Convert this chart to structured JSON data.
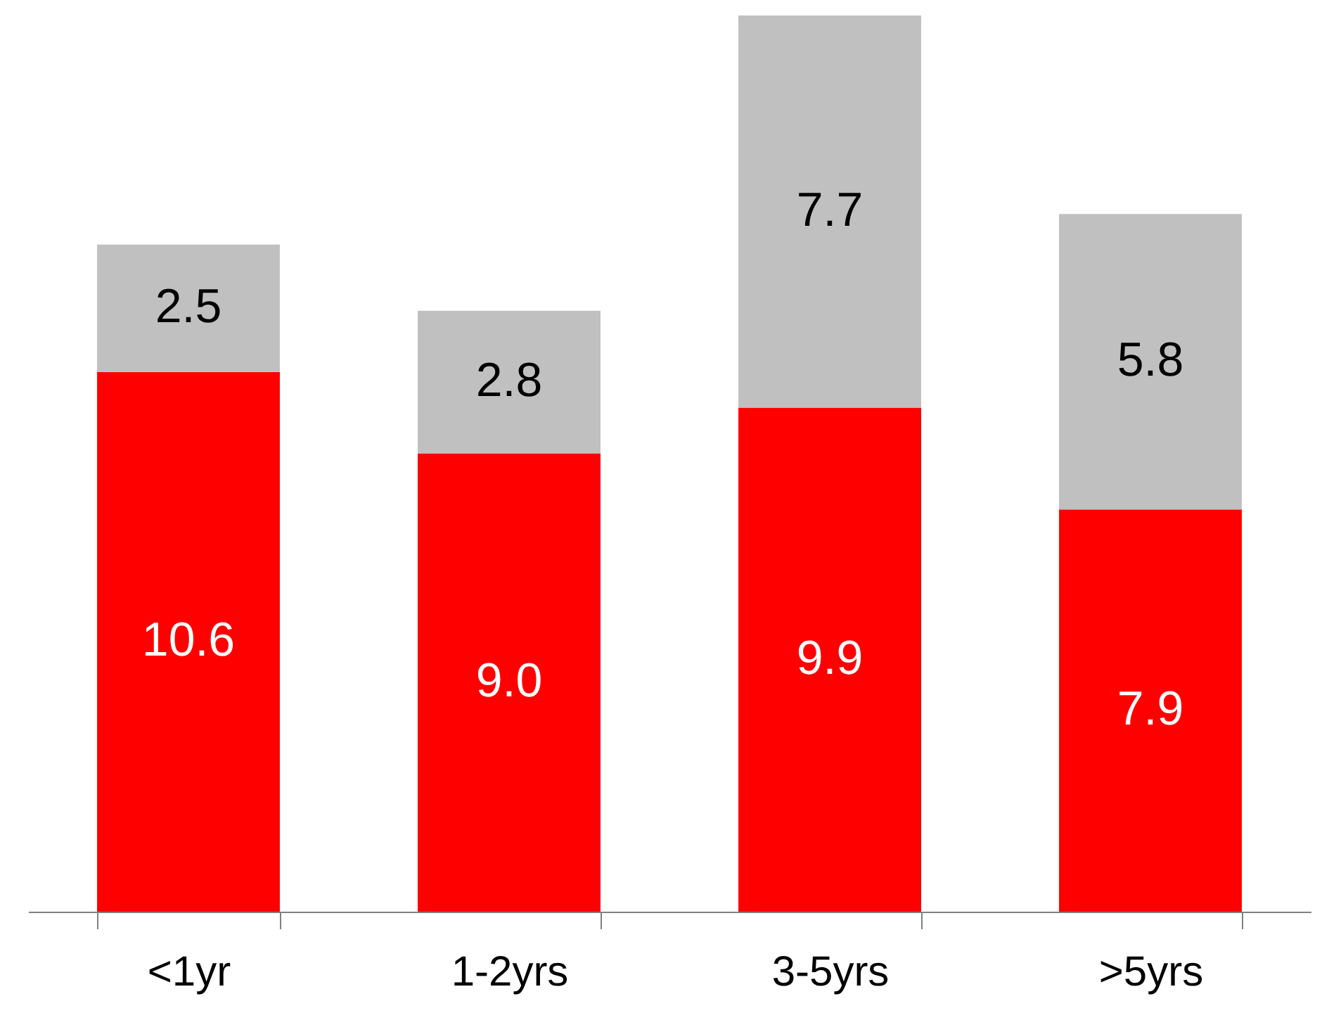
{
  "chart_data": {
    "type": "bar",
    "stacked": true,
    "categories": [
      "<1yr",
      "1-2yrs",
      "3-5yrs",
      ">5yrs"
    ],
    "series": [
      {
        "color": "#ff0000",
        "values": [
          10.6,
          9.0,
          9.9,
          7.9
        ],
        "value_labels": [
          "10.6",
          "9.0",
          "9.9",
          "7.9"
        ]
      },
      {
        "color": "#c0c0c0",
        "values": [
          2.5,
          2.8,
          7.7,
          5.8
        ],
        "value_labels": [
          "2.5",
          "2.8",
          "7.7",
          "5.8"
        ]
      }
    ]
  }
}
